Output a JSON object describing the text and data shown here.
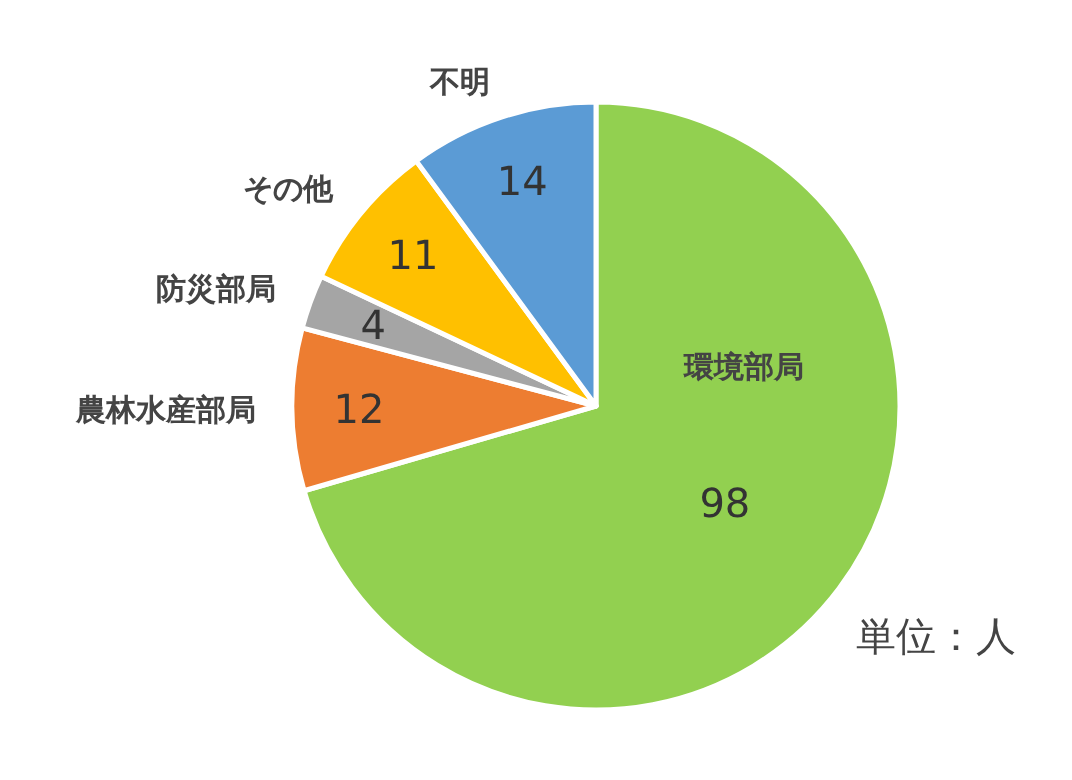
{
  "chart_data": {
    "type": "pie",
    "categories": [
      "環境部局",
      "農林水産部局",
      "防災部局",
      "その他",
      "不明"
    ],
    "values": [
      98,
      12,
      4,
      11,
      14
    ],
    "colors": [
      "#92d050",
      "#ed7d31",
      "#a5a5a5",
      "#ffc000",
      "#5b9bd5"
    ],
    "data_labels": true,
    "legend": false,
    "annotations": [
      "単位：人"
    ]
  }
}
